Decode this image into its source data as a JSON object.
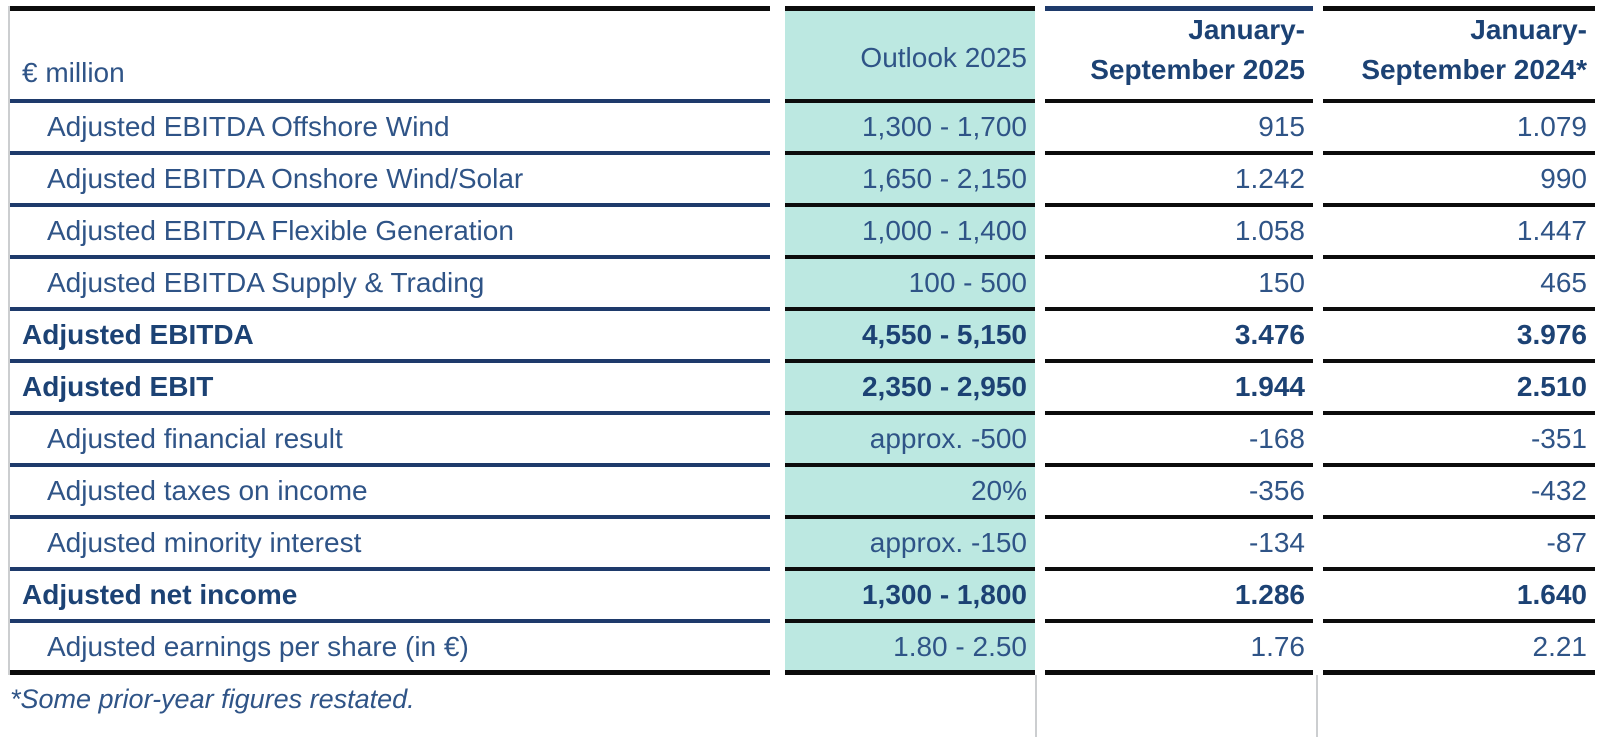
{
  "colors": {
    "teal_highlight": "#bce8e1",
    "navy_text": "#1c4274",
    "regular_text": "#2f5487",
    "navy_line": "#1e3a6b",
    "black_line": "#0c0c0c",
    "gray_line": "#ccced0"
  },
  "table": {
    "unit_label": "€ million",
    "headers": {
      "outlook": "Outlook 2025",
      "period_2025": {
        "line1": "January-",
        "line2": "September 2025"
      },
      "period_2024": {
        "line1": "January-",
        "line2": "September 2024*"
      }
    },
    "rows": [
      {
        "label": "Adjusted EBITDA Offshore Wind",
        "outlook": "1,300 - 1,700",
        "ytd_2025": "915",
        "ytd_2024": "1.079",
        "bold": false
      },
      {
        "label": "Adjusted EBITDA Onshore Wind/Solar",
        "outlook": "1,650 - 2,150",
        "ytd_2025": "1.242",
        "ytd_2024": "990",
        "bold": false
      },
      {
        "label": "Adjusted EBITDA Flexible Generation",
        "outlook": "1,000 - 1,400",
        "ytd_2025": "1.058",
        "ytd_2024": "1.447",
        "bold": false
      },
      {
        "label": "Adjusted EBITDA Supply & Trading",
        "outlook": "100 - 500",
        "ytd_2025": "150",
        "ytd_2024": "465",
        "bold": false
      },
      {
        "label": "Adjusted EBITDA",
        "outlook": "4,550 - 5,150",
        "ytd_2025": "3.476",
        "ytd_2024": "3.976",
        "bold": true
      },
      {
        "label": "Adjusted EBIT",
        "outlook": "2,350 - 2,950",
        "ytd_2025": "1.944",
        "ytd_2024": "2.510",
        "bold": true
      },
      {
        "label": "Adjusted financial result",
        "outlook": "approx. -500",
        "ytd_2025": "-168",
        "ytd_2024": "-351",
        "bold": false
      },
      {
        "label": "Adjusted taxes on income",
        "outlook": "20%",
        "ytd_2025": "-356",
        "ytd_2024": "-432",
        "bold": false
      },
      {
        "label": "Adjusted minority interest",
        "outlook": "approx. -150",
        "ytd_2025": "-134",
        "ytd_2024": "-87",
        "bold": false
      },
      {
        "label": "Adjusted net income",
        "outlook": "1,300 - 1,800",
        "ytd_2025": "1.286",
        "ytd_2024": "1.640",
        "bold": true
      },
      {
        "label": "Adjusted earnings per share (in €)",
        "outlook": "1.80 - 2.50",
        "ytd_2025": "1.76",
        "ytd_2024": "2.21",
        "bold": false
      }
    ],
    "footnote": "*Some prior-year figures restated."
  }
}
